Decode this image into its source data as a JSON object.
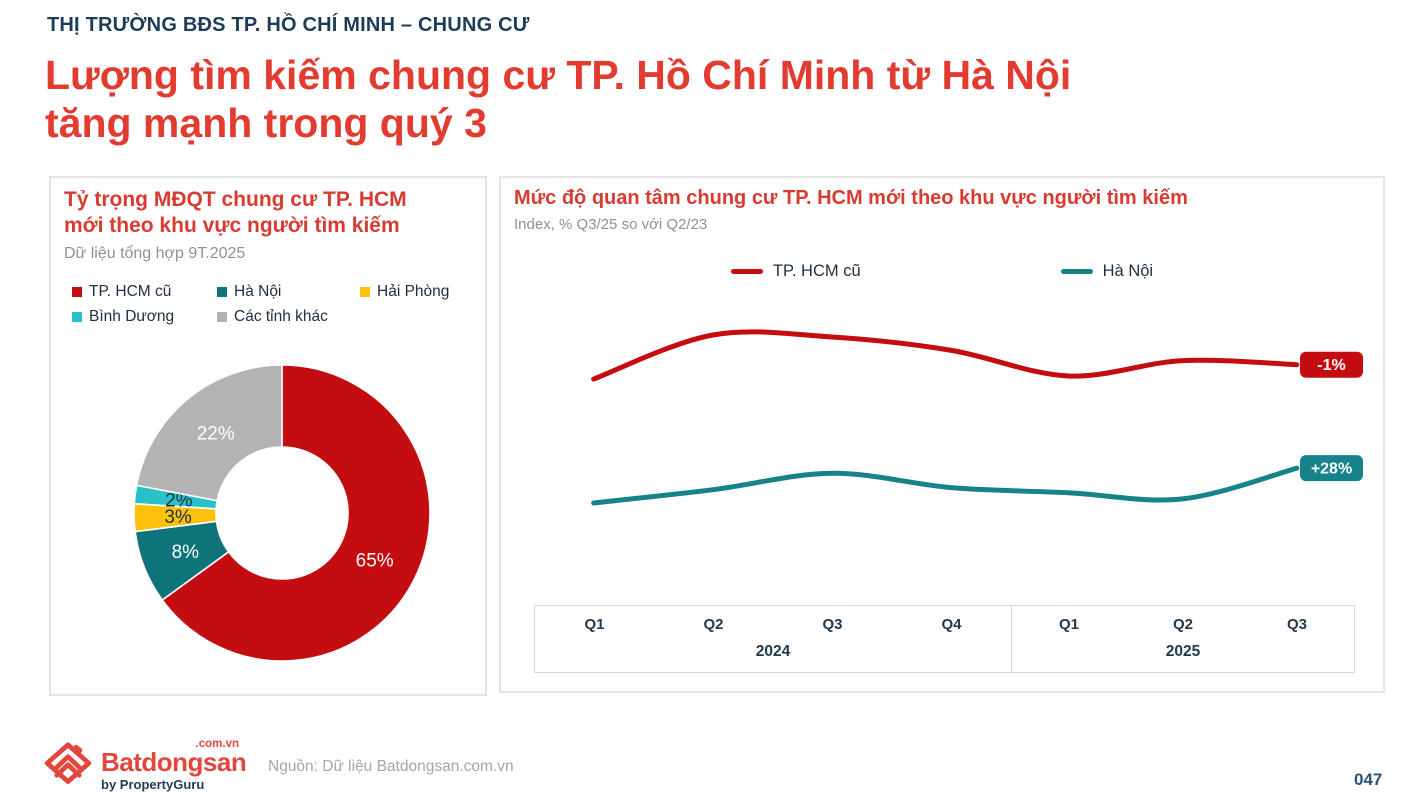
{
  "header": {
    "kicker": "THỊ TRƯỜNG BĐS TP. HỒ CHÍ MINH – CHUNG CƯ",
    "title": "Lượng tìm kiếm chung cư TP. Hồ Chí Minh từ Hà Nội\ntăng mạnh trong quý 3"
  },
  "colors": {
    "accent_red": "#e23b30",
    "panel_title_red": "#d83b31",
    "navy": "#1e3c58",
    "data_red": "#c40d11",
    "data_teal_line": "#16828a",
    "data_teal_slice": "#0e747a",
    "data_yellow": "#fdc00b",
    "data_cyan": "#29c1c8",
    "data_gray": "#b3b3b3",
    "border_gray": "#e4e4e4"
  },
  "chart_data": [
    {
      "type": "pie",
      "donut": true,
      "start": "top",
      "direction": "clockwise",
      "title": "Tỷ trọng MĐQT chung cư TP. HCM\nmới theo khu vực người tìm kiếm",
      "subtitle": "Dữ liệu tổng hợp 9T.2025",
      "slices": [
        {
          "label": "TP. HCM cũ",
          "value": 65,
          "color": "#c40d11",
          "label_color": "#ffffff"
        },
        {
          "label": "Hà Nội",
          "value": 8,
          "color": "#0e747a",
          "label_color": "#ffffff"
        },
        {
          "label": "Hải Phòng",
          "value": 3,
          "color": "#fdc00b",
          "label_color": "#21313f"
        },
        {
          "label": "Bình Dương",
          "value": 2,
          "color": "#29c1c8",
          "label_color": "#21313f"
        },
        {
          "label": "Các tỉnh khác",
          "value": 22,
          "color": "#b3b3b3",
          "label_color": "#ffffff"
        }
      ]
    },
    {
      "type": "line",
      "title": "Mức độ quan tâm chung cư TP. HCM mới theo khu vực người tìm kiếm",
      "subtitle": "Index, % Q3/25 so với Q2/23",
      "grid": false,
      "legend_position": "top",
      "unit": "relative index (estimated from curve heights; only end-point % labels shown)",
      "x_groups": [
        {
          "year": "2024",
          "quarters": [
            "Q1",
            "Q2",
            "Q3",
            "Q4"
          ]
        },
        {
          "year": "2025",
          "quarters": [
            "Q1",
            "Q2",
            "Q3"
          ]
        }
      ],
      "series": [
        {
          "name": "TP. HCM cũ",
          "color": "#c40d11",
          "end_label": "-1%",
          "values": [
            220,
            263,
            261,
            248,
            223,
            238,
            234
          ]
        },
        {
          "name": "Hà Nội",
          "color": "#16828a",
          "end_label": "+28%",
          "values": [
            99,
            112,
            128,
            114,
            109,
            103,
            133
          ]
        }
      ]
    }
  ],
  "footer": {
    "logo_name": "Batdongsan",
    "logo_domain": ".com.vn",
    "logo_byline": "by PropertyGuru",
    "source": "Nguồn: Dữ liệu Batdongsan.com.vn",
    "page_number": "047"
  }
}
